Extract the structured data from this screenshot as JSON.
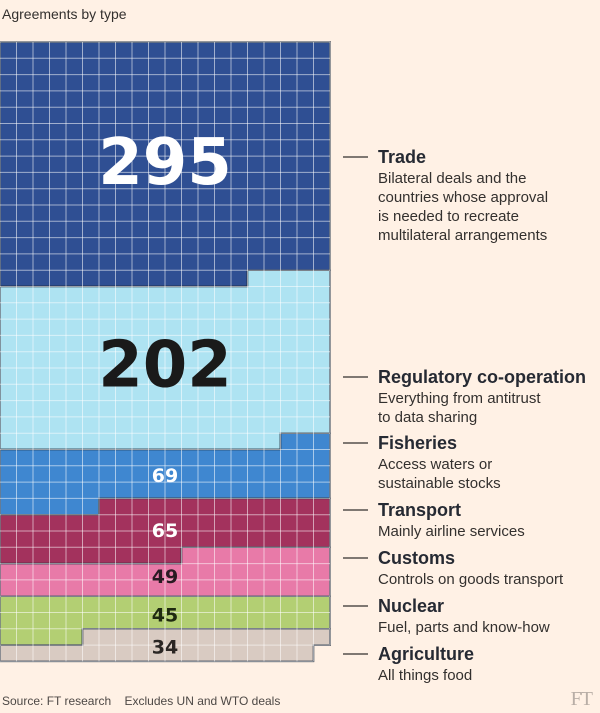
{
  "title": "Agreements by type",
  "footer": {
    "source": "Source: FT research",
    "note": "Excludes UN and WTO deals",
    "logo": "FT"
  },
  "chart_data": {
    "type": "bar",
    "total": 759,
    "grid_columns": 20,
    "categories": [
      {
        "name": "Trade",
        "value": 295,
        "label": "295",
        "color": "#2f4f93",
        "label_color": "#ffffff",
        "desc": [
          "Bilateral deals and the",
          "countries whose approval",
          " is needed to recreate",
          "multilateral arrangements"
        ]
      },
      {
        "name": "Regulatory co-operation",
        "value": 202,
        "label": "202",
        "color": "#aee3f2",
        "label_color": "#1a1a1a",
        "desc": [
          "Everything from antitrust",
          "to data sharing"
        ]
      },
      {
        "name": "Fisheries",
        "value": 69,
        "label": "69",
        "color": "#3f87d0",
        "label_color": "#ffffff",
        "desc": [
          "Access waters or",
          "sustainable stocks"
        ]
      },
      {
        "name": "Transport",
        "value": 65,
        "label": "65",
        "color": "#a3325d",
        "label_color": "#ffffff",
        "desc": [
          "Mainly airline services"
        ]
      },
      {
        "name": "Customs",
        "value": 49,
        "label": "49",
        "color": "#e87aa8",
        "label_color": "#2a1a22",
        "desc": [
          "Controls on goods transport"
        ]
      },
      {
        "name": "Nuclear",
        "value": 45,
        "label": "45",
        "color": "#b3cf73",
        "label_color": "#1f2a10",
        "desc": [
          "Fuel, parts and know-how"
        ]
      },
      {
        "name": "Agriculture",
        "value": 34,
        "label": "34",
        "color": "#d9cbc2",
        "label_color": "#2a2624",
        "desc": [
          "All things food"
        ]
      }
    ]
  }
}
